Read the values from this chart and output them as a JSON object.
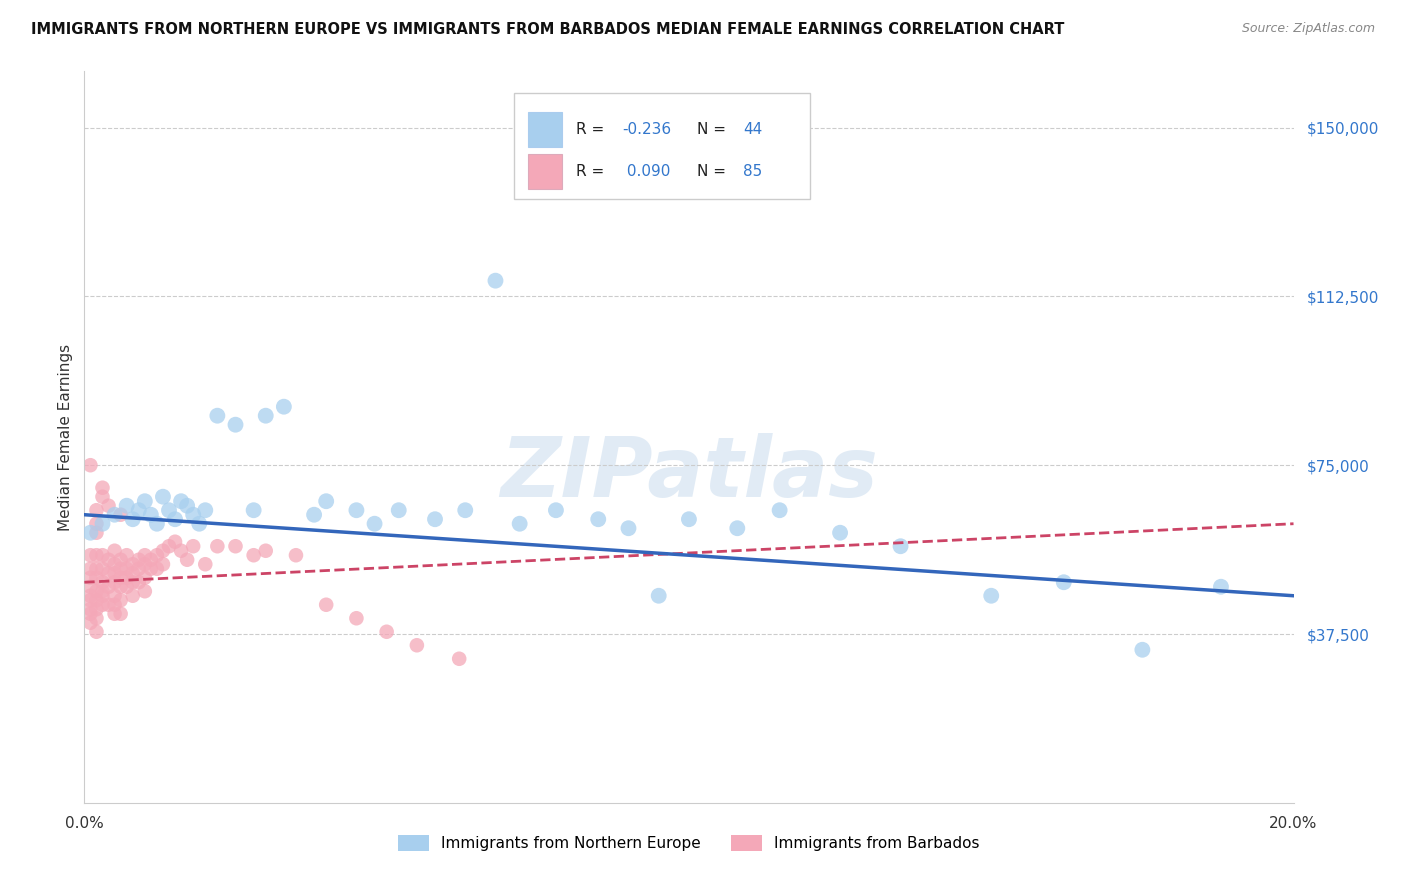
{
  "title": "IMMIGRANTS FROM NORTHERN EUROPE VS IMMIGRANTS FROM BARBADOS MEDIAN FEMALE EARNINGS CORRELATION CHART",
  "source": "Source: ZipAtlas.com",
  "ylabel": "Median Female Earnings",
  "xlim": [
    0.0,
    0.2
  ],
  "ylim": [
    0,
    162500
  ],
  "yticks": [
    0,
    37500,
    75000,
    112500,
    150000
  ],
  "ytick_labels": [
    "",
    "$37,500",
    "$75,000",
    "$112,500",
    "$150,000"
  ],
  "xtick_labels": [
    "0.0%",
    "",
    "",
    "",
    "20.0%"
  ],
  "blue_R": -0.236,
  "blue_N": 44,
  "pink_R": 0.09,
  "pink_N": 85,
  "blue_color": "#A8CFEE",
  "pink_color": "#F4A8B8",
  "blue_line_color": "#3366BB",
  "pink_line_color": "#CC4466",
  "background_color": "#FFFFFF",
  "legend_label_blue": "Immigrants from Northern Europe",
  "legend_label_pink": "Immigrants from Barbados",
  "blue_line_y0": 64000,
  "blue_line_y1": 46000,
  "pink_line_y0": 49000,
  "pink_line_y1": 62000,
  "blue_x": [
    0.001,
    0.003,
    0.005,
    0.007,
    0.008,
    0.009,
    0.01,
    0.011,
    0.012,
    0.013,
    0.014,
    0.015,
    0.016,
    0.017,
    0.018,
    0.019,
    0.02,
    0.022,
    0.025,
    0.028,
    0.03,
    0.033,
    0.038,
    0.04,
    0.045,
    0.048,
    0.052,
    0.058,
    0.063,
    0.068,
    0.072,
    0.078,
    0.085,
    0.09,
    0.095,
    0.1,
    0.108,
    0.115,
    0.125,
    0.135,
    0.15,
    0.162,
    0.175,
    0.188
  ],
  "blue_y": [
    60000,
    62000,
    64000,
    66000,
    63000,
    65000,
    67000,
    64000,
    62000,
    68000,
    65000,
    63000,
    67000,
    66000,
    64000,
    62000,
    65000,
    86000,
    84000,
    65000,
    86000,
    88000,
    64000,
    67000,
    65000,
    62000,
    65000,
    63000,
    65000,
    116000,
    62000,
    65000,
    63000,
    61000,
    46000,
    63000,
    61000,
    65000,
    60000,
    57000,
    46000,
    49000,
    34000,
    48000
  ],
  "pink_x": [
    0.001,
    0.001,
    0.001,
    0.001,
    0.001,
    0.001,
    0.001,
    0.001,
    0.001,
    0.001,
    0.002,
    0.002,
    0.002,
    0.002,
    0.002,
    0.002,
    0.002,
    0.002,
    0.002,
    0.002,
    0.002,
    0.003,
    0.003,
    0.003,
    0.003,
    0.003,
    0.003,
    0.003,
    0.003,
    0.004,
    0.004,
    0.004,
    0.004,
    0.004,
    0.005,
    0.005,
    0.005,
    0.005,
    0.005,
    0.005,
    0.005,
    0.006,
    0.006,
    0.006,
    0.006,
    0.006,
    0.006,
    0.006,
    0.007,
    0.007,
    0.007,
    0.007,
    0.008,
    0.008,
    0.008,
    0.008,
    0.009,
    0.009,
    0.009,
    0.01,
    0.01,
    0.01,
    0.01,
    0.011,
    0.011,
    0.012,
    0.012,
    0.013,
    0.013,
    0.014,
    0.015,
    0.016,
    0.017,
    0.018,
    0.02,
    0.022,
    0.025,
    0.028,
    0.03,
    0.035,
    0.04,
    0.045,
    0.05,
    0.055,
    0.062
  ],
  "pink_y": [
    52000,
    48000,
    45000,
    42000,
    40000,
    55000,
    50000,
    46000,
    43000,
    75000,
    52000,
    50000,
    47000,
    45000,
    43000,
    41000,
    60000,
    55000,
    62000,
    65000,
    38000,
    55000,
    52000,
    49000,
    47000,
    46000,
    44000,
    70000,
    68000,
    54000,
    51000,
    48000,
    44000,
    66000,
    53000,
    51000,
    49000,
    46000,
    44000,
    42000,
    56000,
    54000,
    52000,
    50000,
    48000,
    45000,
    42000,
    64000,
    55000,
    52000,
    50000,
    48000,
    53000,
    51000,
    49000,
    46000,
    54000,
    52000,
    49000,
    55000,
    53000,
    50000,
    47000,
    54000,
    52000,
    55000,
    52000,
    56000,
    53000,
    57000,
    58000,
    56000,
    54000,
    57000,
    53000,
    57000,
    57000,
    55000,
    56000,
    55000,
    44000,
    41000,
    38000,
    35000,
    32000
  ]
}
